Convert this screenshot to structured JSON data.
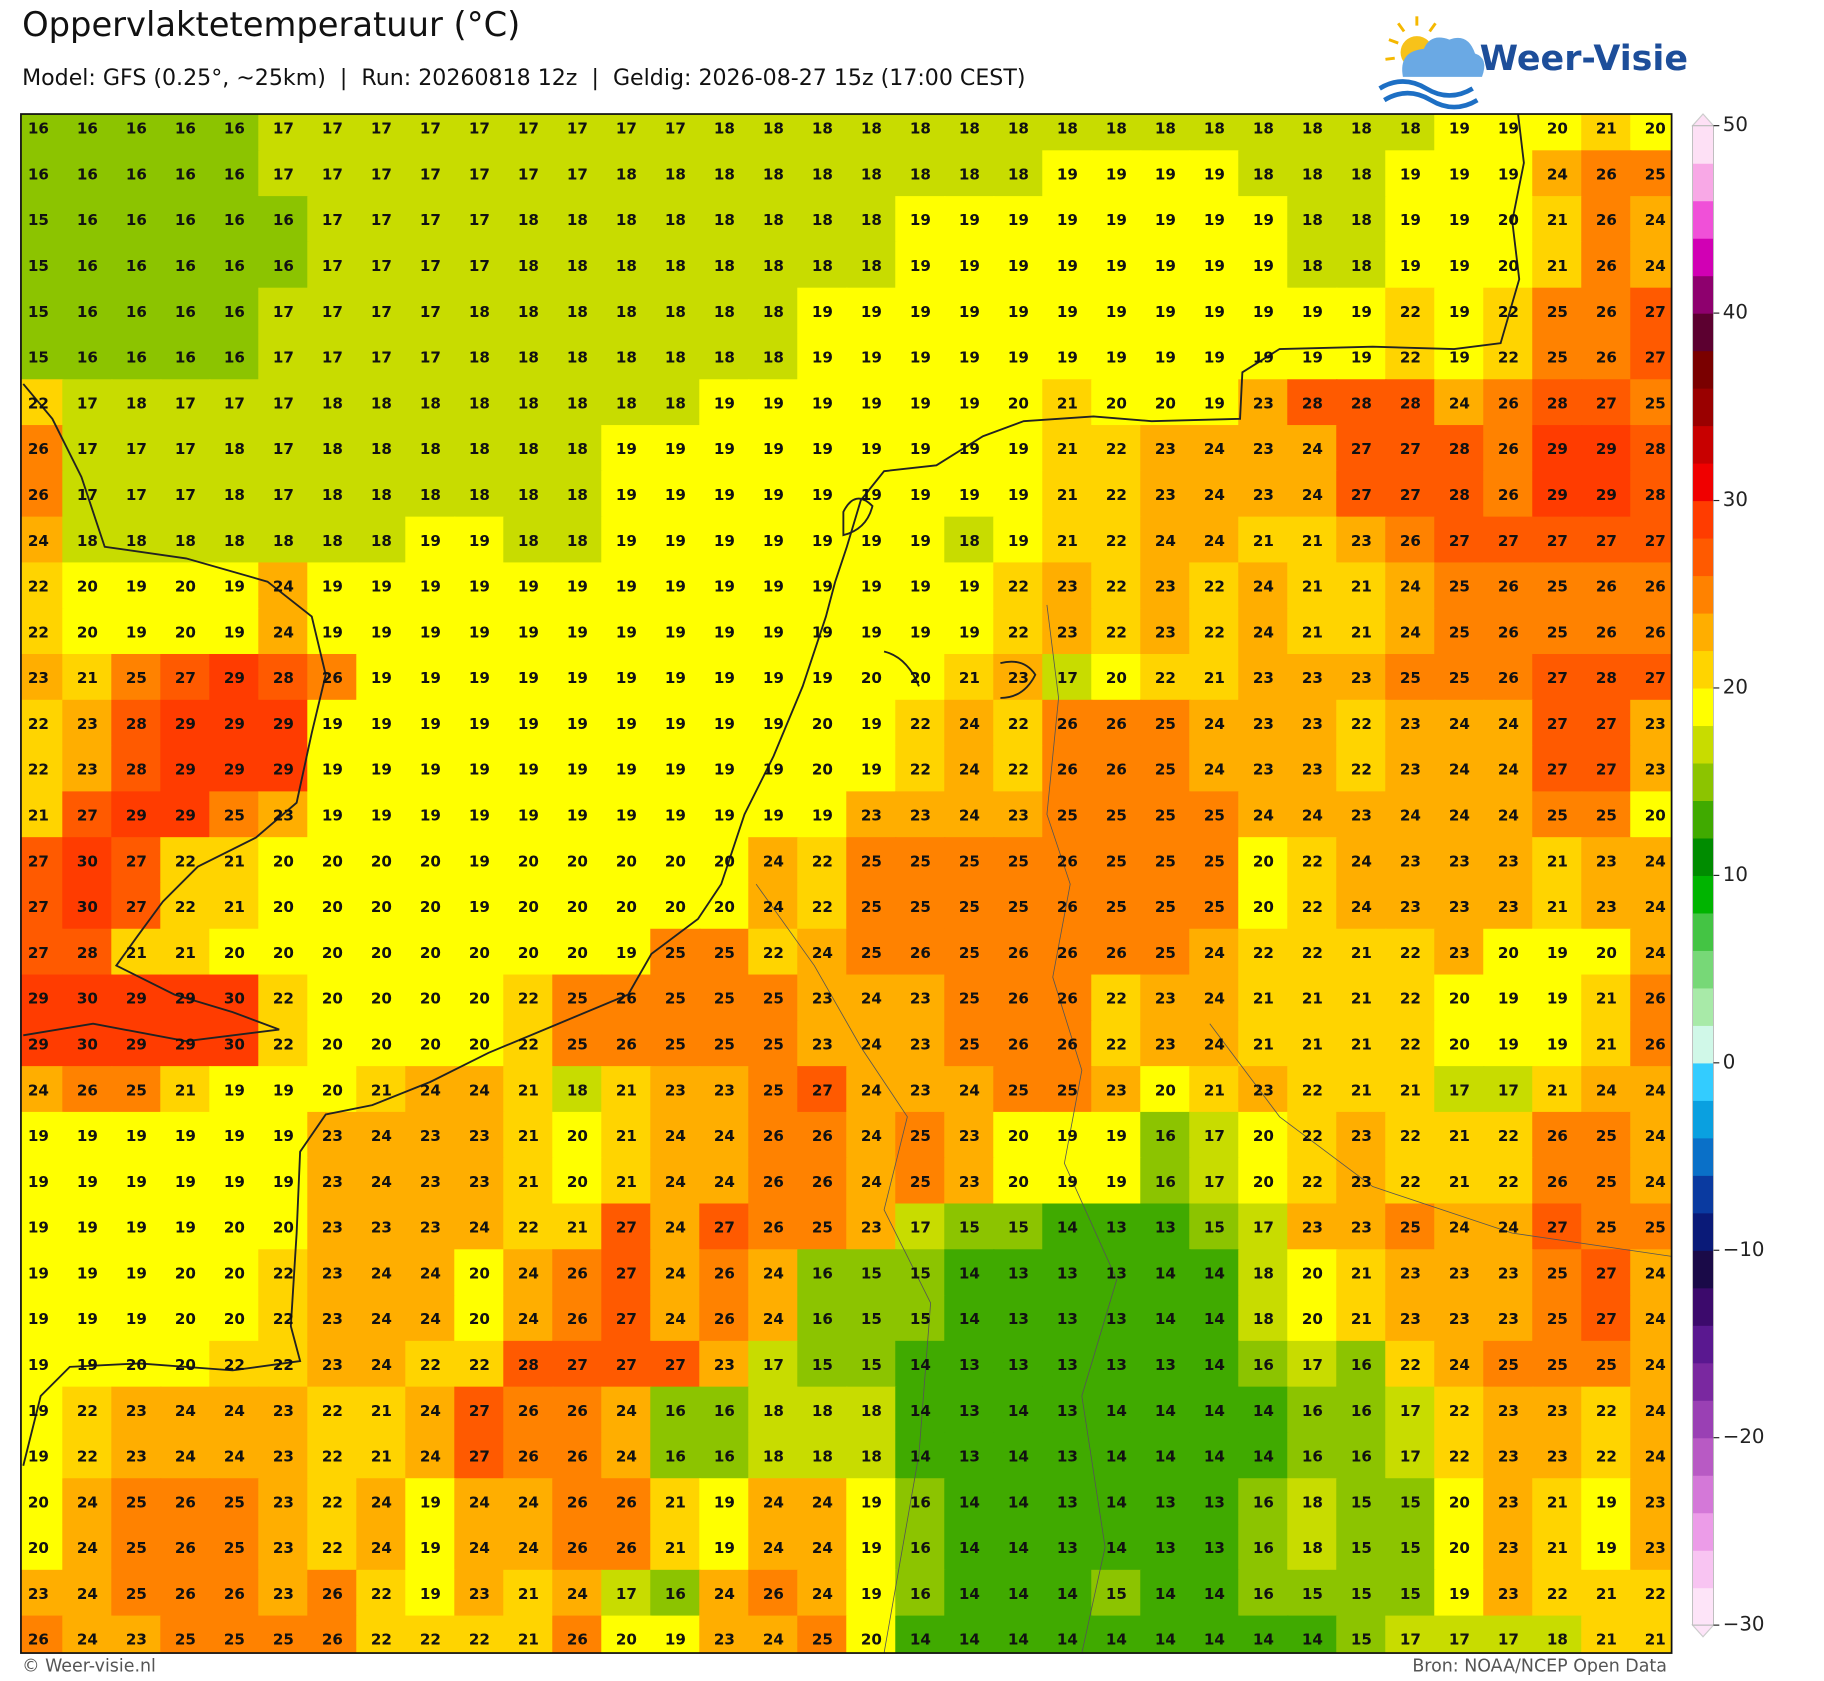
{
  "header": {
    "title": "Oppervlaktetemperatuur (°C)",
    "subtitle": "Model: GFS (0.25°, ~25km)  |  Run: 20260818 12z  |  Geldig: 2026-08-27 15z (17:00 CEST)",
    "brand": "Weer-Visie"
  },
  "chart_data": {
    "type": "grid",
    "rows": [
      [
        16,
        16,
        16,
        16,
        16,
        17,
        17,
        17,
        17,
        17,
        17,
        17,
        17,
        17,
        18,
        18,
        18,
        18,
        18,
        18,
        18,
        18,
        18,
        18,
        18,
        18,
        18,
        18,
        18,
        19,
        19,
        20,
        21,
        20
      ],
      [
        16,
        16,
        16,
        16,
        16,
        17,
        17,
        17,
        17,
        17,
        17,
        17,
        18,
        18,
        18,
        18,
        18,
        18,
        18,
        18,
        18,
        19,
        19,
        19,
        19,
        18,
        18,
        18,
        19,
        19,
        19,
        24,
        26,
        25
      ],
      [
        15,
        16,
        16,
        16,
        16,
        16,
        17,
        17,
        17,
        17,
        18,
        18,
        18,
        18,
        18,
        18,
        18,
        18,
        19,
        19,
        19,
        19,
        19,
        19,
        19,
        19,
        18,
        18,
        19,
        19,
        20,
        21,
        26,
        24
      ],
      [
        15,
        16,
        16,
        16,
        16,
        16,
        17,
        17,
        17,
        17,
        18,
        18,
        18,
        18,
        18,
        18,
        18,
        18,
        19,
        19,
        19,
        19,
        19,
        19,
        19,
        19,
        18,
        18,
        19,
        19,
        20,
        21,
        26,
        24
      ],
      [
        15,
        16,
        16,
        16,
        16,
        17,
        17,
        17,
        17,
        18,
        18,
        18,
        18,
        18,
        18,
        18,
        19,
        19,
        19,
        19,
        19,
        19,
        19,
        19,
        19,
        19,
        19,
        19,
        22,
        19,
        22,
        25,
        26,
        27
      ],
      [
        15,
        16,
        16,
        16,
        16,
        17,
        17,
        17,
        17,
        18,
        18,
        18,
        18,
        18,
        18,
        18,
        19,
        19,
        19,
        19,
        19,
        19,
        19,
        19,
        19,
        19,
        19,
        19,
        22,
        19,
        22,
        25,
        26,
        27
      ],
      [
        22,
        17,
        18,
        17,
        17,
        17,
        18,
        18,
        18,
        18,
        18,
        18,
        18,
        18,
        19,
        19,
        19,
        19,
        19,
        19,
        20,
        21,
        20,
        20,
        19,
        23,
        28,
        28,
        28,
        24,
        26,
        28,
        27,
        25
      ],
      [
        26,
        17,
        17,
        17,
        18,
        17,
        18,
        18,
        18,
        18,
        18,
        18,
        19,
        19,
        19,
        19,
        19,
        19,
        19,
        19,
        19,
        21,
        22,
        23,
        24,
        23,
        24,
        27,
        27,
        28,
        26,
        29,
        29,
        28
      ],
      [
        26,
        17,
        17,
        17,
        18,
        17,
        18,
        18,
        18,
        18,
        18,
        18,
        19,
        19,
        19,
        19,
        19,
        19,
        19,
        19,
        19,
        21,
        22,
        23,
        24,
        23,
        24,
        27,
        27,
        28,
        26,
        29,
        29,
        28
      ],
      [
        24,
        18,
        18,
        18,
        18,
        18,
        18,
        18,
        19,
        19,
        18,
        18,
        19,
        19,
        19,
        19,
        19,
        19,
        19,
        18,
        19,
        21,
        22,
        24,
        24,
        21,
        21,
        23,
        26,
        27,
        27,
        27,
        27,
        27
      ],
      [
        22,
        20,
        19,
        20,
        19,
        24,
        19,
        19,
        19,
        19,
        19,
        19,
        19,
        19,
        19,
        19,
        19,
        19,
        19,
        19,
        22,
        23,
        22,
        23,
        22,
        24,
        21,
        21,
        24,
        25,
        26,
        25,
        26,
        26
      ],
      [
        22,
        20,
        19,
        20,
        19,
        24,
        19,
        19,
        19,
        19,
        19,
        19,
        19,
        19,
        19,
        19,
        19,
        19,
        19,
        19,
        22,
        23,
        22,
        23,
        22,
        24,
        21,
        21,
        24,
        25,
        26,
        25,
        26,
        26
      ],
      [
        23,
        21,
        25,
        27,
        29,
        28,
        26,
        19,
        19,
        19,
        19,
        19,
        19,
        19,
        19,
        19,
        19,
        20,
        20,
        21,
        23,
        17,
        20,
        22,
        21,
        23,
        23,
        23,
        25,
        25,
        26,
        27,
        28,
        27
      ],
      [
        22,
        23,
        28,
        29,
        29,
        29,
        19,
        19,
        19,
        19,
        19,
        19,
        19,
        19,
        19,
        19,
        20,
        19,
        22,
        24,
        22,
        26,
        26,
        25,
        24,
        23,
        23,
        22,
        23,
        24,
        24,
        27,
        27,
        23
      ],
      [
        22,
        23,
        28,
        29,
        29,
        29,
        19,
        19,
        19,
        19,
        19,
        19,
        19,
        19,
        19,
        19,
        20,
        19,
        22,
        24,
        22,
        26,
        26,
        25,
        24,
        23,
        23,
        22,
        23,
        24,
        24,
        27,
        27,
        23
      ],
      [
        21,
        27,
        29,
        29,
        25,
        23,
        19,
        19,
        19,
        19,
        19,
        19,
        19,
        19,
        19,
        19,
        19,
        23,
        23,
        24,
        23,
        25,
        25,
        25,
        25,
        24,
        24,
        23,
        24,
        24,
        24,
        25,
        25,
        20
      ],
      [
        27,
        30,
        27,
        22,
        21,
        20,
        20,
        20,
        20,
        19,
        20,
        20,
        20,
        20,
        20,
        24,
        22,
        25,
        25,
        25,
        25,
        26,
        25,
        25,
        25,
        20,
        22,
        24,
        23,
        23,
        23,
        21,
        23,
        24
      ],
      [
        27,
        30,
        27,
        22,
        21,
        20,
        20,
        20,
        20,
        19,
        20,
        20,
        20,
        20,
        20,
        24,
        22,
        25,
        25,
        25,
        25,
        26,
        25,
        25,
        25,
        20,
        22,
        24,
        23,
        23,
        23,
        21,
        23,
        24
      ],
      [
        27,
        28,
        21,
        21,
        20,
        20,
        20,
        20,
        20,
        20,
        20,
        20,
        19,
        25,
        25,
        22,
        24,
        25,
        26,
        25,
        26,
        26,
        26,
        25,
        24,
        22,
        22,
        21,
        22,
        23,
        20,
        19,
        20,
        24
      ],
      [
        29,
        30,
        29,
        29,
        30,
        22,
        20,
        20,
        20,
        20,
        22,
        25,
        26,
        25,
        25,
        25,
        23,
        24,
        23,
        25,
        26,
        26,
        22,
        23,
        24,
        21,
        21,
        21,
        22,
        20,
        19,
        19,
        21,
        26
      ],
      [
        29,
        30,
        29,
        29,
        30,
        22,
        20,
        20,
        20,
        20,
        22,
        25,
        26,
        25,
        25,
        25,
        23,
        24,
        23,
        25,
        26,
        26,
        22,
        23,
        24,
        21,
        21,
        21,
        22,
        20,
        19,
        19,
        21,
        26
      ],
      [
        24,
        26,
        25,
        21,
        19,
        19,
        20,
        21,
        24,
        24,
        21,
        18,
        21,
        23,
        23,
        25,
        27,
        24,
        23,
        24,
        25,
        25,
        23,
        20,
        21,
        23,
        22,
        21,
        21,
        17,
        17,
        21,
        24,
        24
      ],
      [
        19,
        19,
        19,
        19,
        19,
        19,
        23,
        24,
        23,
        23,
        21,
        20,
        21,
        24,
        24,
        26,
        26,
        24,
        25,
        23,
        20,
        19,
        19,
        16,
        17,
        20,
        22,
        23,
        22,
        21,
        22,
        26,
        25,
        24
      ],
      [
        19,
        19,
        19,
        19,
        19,
        19,
        23,
        24,
        23,
        23,
        21,
        20,
        21,
        24,
        24,
        26,
        26,
        24,
        25,
        23,
        20,
        19,
        19,
        16,
        17,
        20,
        22,
        23,
        22,
        21,
        22,
        26,
        25,
        24
      ],
      [
        19,
        19,
        19,
        19,
        20,
        20,
        23,
        23,
        23,
        24,
        22,
        21,
        27,
        24,
        27,
        26,
        25,
        23,
        17,
        15,
        15,
        14,
        13,
        13,
        15,
        17,
        23,
        23,
        25,
        24,
        24,
        27,
        25,
        25
      ],
      [
        19,
        19,
        19,
        20,
        20,
        22,
        23,
        24,
        24,
        20,
        24,
        26,
        27,
        24,
        26,
        24,
        16,
        15,
        15,
        14,
        13,
        13,
        13,
        14,
        14,
        18,
        20,
        21,
        23,
        23,
        23,
        25,
        27,
        24
      ],
      [
        19,
        19,
        19,
        20,
        20,
        22,
        23,
        24,
        24,
        20,
        24,
        26,
        27,
        24,
        26,
        24,
        16,
        15,
        15,
        14,
        13,
        13,
        13,
        14,
        14,
        18,
        20,
        21,
        23,
        23,
        23,
        25,
        27,
        24
      ],
      [
        19,
        19,
        20,
        20,
        22,
        22,
        23,
        24,
        22,
        22,
        28,
        27,
        27,
        27,
        23,
        17,
        15,
        15,
        14,
        13,
        13,
        13,
        13,
        13,
        14,
        16,
        17,
        16,
        22,
        24,
        25,
        25,
        25,
        24
      ],
      [
        19,
        22,
        23,
        24,
        24,
        23,
        22,
        21,
        24,
        27,
        26,
        26,
        24,
        16,
        16,
        18,
        18,
        18,
        14,
        13,
        14,
        13,
        14,
        14,
        14,
        14,
        16,
        16,
        17,
        22,
        23,
        23,
        22,
        24
      ],
      [
        19,
        22,
        23,
        24,
        24,
        23,
        22,
        21,
        24,
        27,
        26,
        26,
        24,
        16,
        16,
        18,
        18,
        18,
        14,
        13,
        14,
        13,
        14,
        14,
        14,
        14,
        16,
        16,
        17,
        22,
        23,
        23,
        22,
        24
      ],
      [
        20,
        24,
        25,
        26,
        25,
        23,
        22,
        24,
        19,
        24,
        24,
        26,
        26,
        21,
        19,
        24,
        24,
        19,
        16,
        14,
        14,
        13,
        14,
        13,
        13,
        16,
        18,
        15,
        15,
        20,
        23,
        21,
        19,
        23
      ],
      [
        20,
        24,
        25,
        26,
        25,
        23,
        22,
        24,
        19,
        24,
        24,
        26,
        26,
        21,
        19,
        24,
        24,
        19,
        16,
        14,
        14,
        13,
        14,
        13,
        13,
        16,
        18,
        15,
        15,
        20,
        23,
        21,
        19,
        23
      ],
      [
        23,
        24,
        25,
        26,
        26,
        23,
        26,
        22,
        19,
        23,
        21,
        24,
        17,
        16,
        24,
        26,
        24,
        19,
        16,
        14,
        14,
        14,
        15,
        14,
        14,
        16,
        15,
        15,
        15,
        19,
        23,
        22,
        21,
        22
      ],
      [
        26,
        24,
        23,
        25,
        25,
        25,
        26,
        22,
        22,
        22,
        21,
        26,
        20,
        19,
        23,
        24,
        25,
        20,
        14,
        14,
        14,
        14,
        14,
        14,
        14,
        14,
        14,
        15,
        17,
        17,
        17,
        18,
        21,
        21
      ]
    ],
    "colorbar": {
      "lim": [
        -30,
        50
      ],
      "colors": [
        "#fde4f8",
        "#f8c4f2",
        "#ec9ce8",
        "#d478d8",
        "#b85ac4",
        "#9a40b4",
        "#7a28a0",
        "#5a1890",
        "#3c0a6c",
        "#1a0a48",
        "#0a1a78",
        "#0a3aa0",
        "#0a70c8",
        "#0aa0e0",
        "#33ccff",
        "#d0f8e8",
        "#a8eaa8",
        "#77d877",
        "#44c444",
        "#00b400",
        "#008c00",
        "#40aa00",
        "#8cc400",
        "#c8dc00",
        "#ffff00",
        "#ffd400",
        "#ffae00",
        "#ff8200",
        "#ff5a00",
        "#ff3c00",
        "#f00000",
        "#c80000",
        "#9a0000",
        "#7a0000",
        "#5c0030",
        "#8e006e",
        "#d100b4",
        "#f050d8",
        "#f8a8e6",
        "#fde0f5"
      ],
      "ticks": [
        50,
        40,
        30,
        20,
        10,
        0,
        {
          "value": -10,
          "label": "−10"
        },
        {
          "value": -20,
          "label": "−20"
        },
        {
          "value": -30,
          "label": "−30"
        }
      ]
    }
  },
  "footer": {
    "left": "© Weer-visie.nl",
    "right": "Bron: NOAA/NCEP Open Data"
  }
}
